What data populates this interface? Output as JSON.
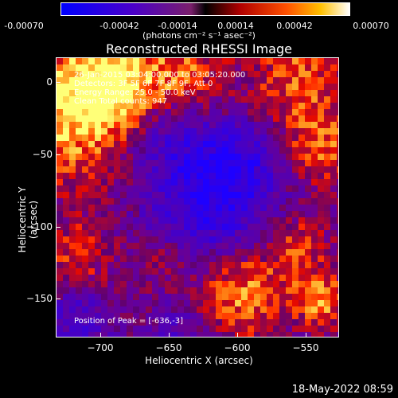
{
  "colorbar": {
    "ticks": [
      "-0.00070",
      "-0.00042",
      "-0.00014",
      "0.00014",
      "0.00042",
      "0.00070"
    ],
    "units": "(photons cm⁻² s⁻¹ asec⁻²)"
  },
  "title": "Reconstructed RHESSI Image",
  "info": {
    "line1": "26-Jan-2015 03:04:00.000 to 03:05:20.000",
    "line2": "Detectors: 3F 5F 6F 7F 8F 9F, Att 0",
    "line3": "Energy Range: 25.0 - 50.0 keV",
    "line4": "Clean     Total counts: 947",
    "peak": "Position of Peak = [-636,-3]"
  },
  "axes": {
    "xlabel": "Heliocentric X (arcsec)",
    "ylabel": "Heliocentric Y (arcsec)",
    "xticks": [
      "−700",
      "−650",
      "−600",
      "−550"
    ],
    "yticks": [
      "0",
      "−50",
      "−100",
      "−150"
    ]
  },
  "footer": {
    "date": "18-May-2022 08:59"
  }
}
